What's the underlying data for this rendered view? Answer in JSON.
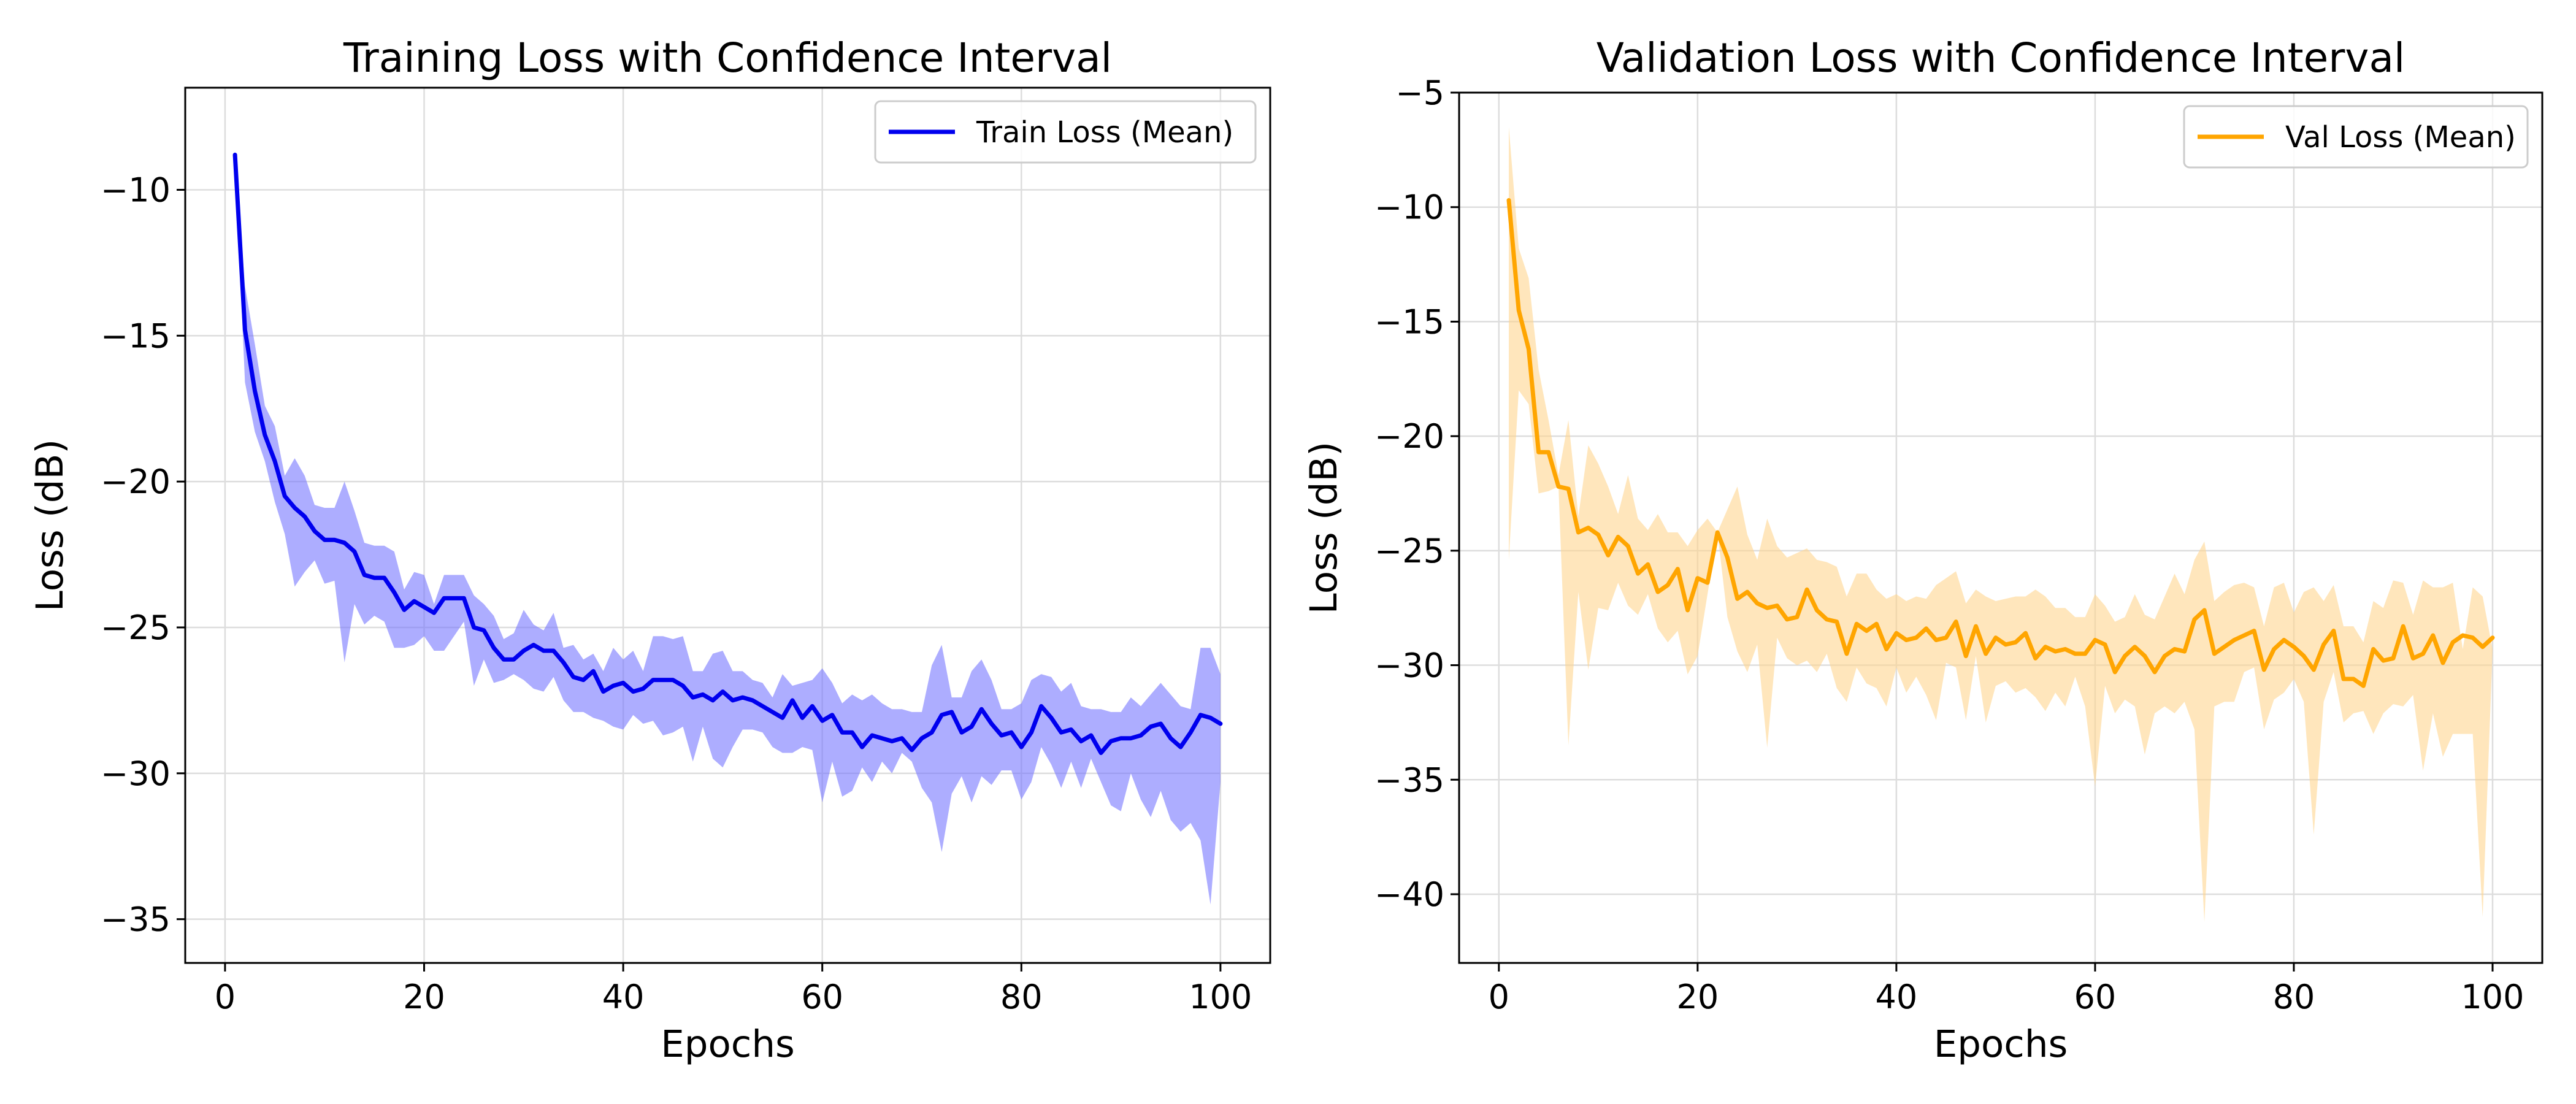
{
  "chart_data": [
    {
      "type": "line",
      "title": "Training Loss with Confidence Interval",
      "xlabel": "Epochs",
      "ylabel": "Loss (dB)",
      "xlim": [
        -4,
        105
      ],
      "ylim": [
        -36.5,
        -6.5
      ],
      "xticks": [
        0,
        20,
        40,
        60,
        80,
        100
      ],
      "xtick_labels": [
        "0",
        "20",
        "40",
        "60",
        "80",
        "100"
      ],
      "yticks": [
        -10,
        -15,
        -20,
        -25,
        -30,
        -35
      ],
      "ytick_labels": [
        "−10",
        "−15",
        "−20",
        "−25",
        "−30",
        "−35"
      ],
      "grid": true,
      "legend_position": "top-right",
      "color": "#0000ee",
      "fill_color": "#7777ff",
      "series": [
        {
          "name": "Train Loss (Mean)",
          "x": [
            1,
            2,
            3,
            4,
            5,
            6,
            7,
            8,
            9,
            10,
            11,
            12,
            13,
            14,
            15,
            16,
            17,
            18,
            19,
            20,
            21,
            22,
            23,
            24,
            25,
            26,
            27,
            28,
            29,
            30,
            31,
            32,
            33,
            34,
            35,
            36,
            37,
            38,
            39,
            40,
            41,
            42,
            43,
            44,
            45,
            46,
            47,
            48,
            49,
            50,
            51,
            52,
            53,
            54,
            55,
            56,
            57,
            58,
            59,
            60,
            61,
            62,
            63,
            64,
            65,
            66,
            67,
            68,
            69,
            70,
            71,
            72,
            73,
            74,
            75,
            76,
            77,
            78,
            79,
            80,
            81,
            82,
            83,
            84,
            85,
            86,
            87,
            88,
            89,
            90,
            91,
            92,
            93,
            94,
            95,
            96,
            97,
            98,
            99,
            100
          ],
          "mean": [
            -8.8,
            -14.8,
            -16.9,
            -18.4,
            -19.3,
            -20.5,
            -20.9,
            -21.2,
            -21.7,
            -22.0,
            -22.0,
            -22.1,
            -22.4,
            -23.2,
            -23.3,
            -23.3,
            -23.8,
            -24.4,
            -24.1,
            -24.3,
            -24.5,
            -24.0,
            -24.0,
            -24.0,
            -25.0,
            -25.1,
            -25.7,
            -26.1,
            -26.1,
            -25.8,
            -25.6,
            -25.8,
            -25.8,
            -26.2,
            -26.7,
            -26.8,
            -26.5,
            -27.2,
            -27.0,
            -26.9,
            -27.2,
            -27.1,
            -26.8,
            -26.8,
            -26.8,
            -27.0,
            -27.4,
            -27.3,
            -27.5,
            -27.2,
            -27.5,
            -27.4,
            -27.5,
            -27.7,
            -27.9,
            -28.1,
            -27.5,
            -28.1,
            -27.7,
            -28.2,
            -28.0,
            -28.6,
            -28.6,
            -29.1,
            -28.7,
            -28.8,
            -28.9,
            -28.8,
            -29.2,
            -28.8,
            -28.6,
            -28.0,
            -27.9,
            -28.6,
            -28.4,
            -27.8,
            -28.3,
            -28.7,
            -28.6,
            -29.1,
            -28.6,
            -27.7,
            -28.1,
            -28.6,
            -28.5,
            -28.9,
            -28.7,
            -29.3,
            -28.9,
            -28.8,
            -28.8,
            -28.7,
            -28.4,
            -28.3,
            -28.8,
            -29.1,
            -28.6,
            -28.0,
            -28.1,
            -28.3
          ],
          "lower": [
            -8.8,
            -16.6,
            -18.3,
            -19.3,
            -20.7,
            -21.8,
            -23.6,
            -23.1,
            -22.7,
            -23.5,
            -23.4,
            -26.2,
            -24.2,
            -24.9,
            -24.6,
            -24.8,
            -25.7,
            -25.7,
            -25.6,
            -25.3,
            -25.8,
            -25.8,
            -25.3,
            -24.8,
            -27.0,
            -26.1,
            -26.9,
            -26.8,
            -26.6,
            -26.8,
            -27.1,
            -27.2,
            -26.7,
            -27.5,
            -27.9,
            -27.9,
            -28.1,
            -28.2,
            -28.4,
            -28.5,
            -28.0,
            -28.3,
            -28.2,
            -28.7,
            -28.6,
            -28.4,
            -29.6,
            -28.4,
            -29.5,
            -29.8,
            -29.1,
            -28.5,
            -28.5,
            -28.6,
            -29.1,
            -29.3,
            -29.3,
            -29.1,
            -29.2,
            -31.0,
            -29.6,
            -30.8,
            -30.6,
            -29.8,
            -30.3,
            -29.6,
            -30.0,
            -29.3,
            -29.6,
            -30.5,
            -31.0,
            -32.7,
            -30.7,
            -30.1,
            -31.0,
            -30.1,
            -30.4,
            -29.9,
            -29.9,
            -30.9,
            -30.3,
            -29.1,
            -29.7,
            -30.5,
            -29.6,
            -30.5,
            -29.5,
            -30.3,
            -31.1,
            -31.3,
            -30.0,
            -30.9,
            -31.5,
            -30.6,
            -31.6,
            -32.0,
            -31.7,
            -32.3,
            -34.5,
            -30.3
          ],
          "upper": [
            -8.8,
            -13.3,
            -15.3,
            -17.4,
            -18.1,
            -19.8,
            -19.2,
            -19.8,
            -20.8,
            -20.9,
            -20.9,
            -20.0,
            -21.0,
            -22.1,
            -22.2,
            -22.2,
            -22.4,
            -23.7,
            -23.1,
            -23.2,
            -24.2,
            -23.2,
            -23.2,
            -23.2,
            -23.9,
            -24.2,
            -24.6,
            -25.4,
            -25.2,
            -24.4,
            -24.9,
            -25.1,
            -24.5,
            -25.7,
            -25.6,
            -26.1,
            -25.9,
            -26.5,
            -25.7,
            -26.1,
            -25.8,
            -26.5,
            -25.3,
            -25.3,
            -25.4,
            -25.3,
            -26.5,
            -26.5,
            -25.9,
            -25.8,
            -26.5,
            -26.5,
            -26.8,
            -26.9,
            -27.4,
            -26.6,
            -27.0,
            -26.9,
            -26.8,
            -26.4,
            -26.9,
            -27.6,
            -27.3,
            -27.5,
            -27.3,
            -27.6,
            -27.8,
            -27.8,
            -27.9,
            -27.9,
            -26.3,
            -25.6,
            -27.4,
            -27.4,
            -26.5,
            -26.1,
            -26.8,
            -27.8,
            -27.8,
            -27.6,
            -26.8,
            -26.6,
            -26.7,
            -27.2,
            -26.9,
            -27.7,
            -27.8,
            -27.8,
            -27.9,
            -27.9,
            -27.4,
            -27.7,
            -27.3,
            -26.9,
            -27.3,
            -27.7,
            -27.8,
            -25.7,
            -25.7,
            -26.6
          ]
        }
      ]
    },
    {
      "type": "line",
      "title": "Validation Loss with Confidence Interval",
      "xlabel": "Epochs",
      "ylabel": "Loss (dB)",
      "xlim": [
        -4,
        105
      ],
      "ylim": [
        -43,
        -5
      ],
      "xticks": [
        0,
        20,
        40,
        60,
        80,
        100
      ],
      "xtick_labels": [
        "0",
        "20",
        "40",
        "60",
        "80",
        "100"
      ],
      "yticks": [
        -5,
        -10,
        -15,
        -20,
        -25,
        -30,
        -35,
        -40
      ],
      "ytick_labels": [
        "−5",
        "−10",
        "−15",
        "−20",
        "−25",
        "−30",
        "−35",
        "−40"
      ],
      "grid": true,
      "legend_position": "top-right",
      "color": "#ffa500",
      "fill_color": "#ffd58f",
      "series": [
        {
          "name": "Val Loss (Mean)",
          "x": [
            1,
            2,
            3,
            4,
            5,
            6,
            7,
            8,
            9,
            10,
            11,
            12,
            13,
            14,
            15,
            16,
            17,
            18,
            19,
            20,
            21,
            22,
            23,
            24,
            25,
            26,
            27,
            28,
            29,
            30,
            31,
            32,
            33,
            34,
            35,
            36,
            37,
            38,
            39,
            40,
            41,
            42,
            43,
            44,
            45,
            46,
            47,
            48,
            49,
            50,
            51,
            52,
            53,
            54,
            55,
            56,
            57,
            58,
            59,
            60,
            61,
            62,
            63,
            64,
            65,
            66,
            67,
            68,
            69,
            70,
            71,
            72,
            73,
            74,
            75,
            76,
            77,
            78,
            79,
            80,
            81,
            82,
            83,
            84,
            85,
            86,
            87,
            88,
            89,
            90,
            91,
            92,
            93,
            94,
            95,
            96,
            97,
            98,
            99,
            100
          ],
          "mean": [
            -9.7,
            -14.5,
            -16.2,
            -20.7,
            -20.7,
            -22.2,
            -22.3,
            -24.2,
            -24.0,
            -24.3,
            -25.2,
            -24.4,
            -24.8,
            -26.0,
            -25.6,
            -26.8,
            -26.5,
            -25.8,
            -27.6,
            -26.2,
            -26.4,
            -24.2,
            -25.3,
            -27.1,
            -26.8,
            -27.3,
            -27.5,
            -27.4,
            -28.0,
            -27.9,
            -26.7,
            -27.6,
            -28.0,
            -28.1,
            -29.5,
            -28.2,
            -28.5,
            -28.2,
            -29.3,
            -28.6,
            -28.9,
            -28.8,
            -28.4,
            -28.9,
            -28.8,
            -28.1,
            -29.6,
            -28.3,
            -29.5,
            -28.8,
            -29.1,
            -29.0,
            -28.6,
            -29.7,
            -29.2,
            -29.4,
            -29.3,
            -29.5,
            -29.5,
            -28.9,
            -29.1,
            -30.3,
            -29.6,
            -29.2,
            -29.6,
            -30.3,
            -29.6,
            -29.3,
            -29.4,
            -28.0,
            -27.6,
            -29.5,
            -29.2,
            -28.9,
            -28.7,
            -28.5,
            -30.2,
            -29.3,
            -28.9,
            -29.2,
            -29.6,
            -30.2,
            -29.1,
            -28.5,
            -30.6,
            -30.6,
            -30.9,
            -29.3,
            -29.8,
            -29.7,
            -28.3,
            -29.7,
            -29.5,
            -28.7,
            -29.9,
            -29.0,
            -28.7,
            -28.8,
            -29.2,
            -28.8
          ]
        }
      ],
      "lower": [
        -25.4,
        -18.0,
        -18.6,
        -22.5,
        -22.4,
        -22.2,
        -33.5,
        -26.8,
        -30.2,
        -27.5,
        -27.6,
        -26.4,
        -27.4,
        -27.8,
        -26.9,
        -28.4,
        -29.0,
        -28.5,
        -30.4,
        -29.6,
        -26.9,
        -24.2,
        -27.9,
        -29.4,
        -30.3,
        -29.1,
        -33.6,
        -28.8,
        -29.7,
        -30.0,
        -29.8,
        -30.3,
        -29.5,
        -31.0,
        -31.6,
        -30.1,
        -30.8,
        -31.0,
        -31.8,
        -30.1,
        -31.2,
        -30.5,
        -31.3,
        -32.4,
        -29.9,
        -30.1,
        -32.4,
        -29.6,
        -32.5,
        -30.9,
        -30.7,
        -31.2,
        -31.0,
        -31.4,
        -32.0,
        -31.2,
        -31.8,
        -30.5,
        -31.8,
        -35.3,
        -30.9,
        -32.1,
        -31.5,
        -31.8,
        -33.9,
        -32.1,
        -31.8,
        -32.1,
        -31.6,
        -32.8,
        -41.2,
        -31.8,
        -31.6,
        -31.6,
        -30.3,
        -30.1,
        -32.8,
        -31.5,
        -31.2,
        -30.6,
        -31.6,
        -37.4,
        -31.6,
        -30.3,
        -32.5,
        -32.1,
        -32.0,
        -33.0,
        -32.1,
        -31.7,
        -31.8,
        -31.3,
        -34.6,
        -32.1,
        -34.0,
        -33.0,
        -33.0,
        -33.0,
        -41.0,
        -29.3
      ],
      "upper": [
        -6.5,
        -11.8,
        -13.1,
        -17.1,
        -19.3,
        -21.7,
        -19.3,
        -23.5,
        -20.4,
        -21.2,
        -22.2,
        -23.4,
        -21.7,
        -23.6,
        -24.1,
        -23.4,
        -24.2,
        -24.2,
        -24.8,
        -24.1,
        -23.6,
        -24.2,
        -23.2,
        -22.2,
        -24.3,
        -25.4,
        -23.6,
        -24.8,
        -25.3,
        -25.1,
        -24.9,
        -25.4,
        -25.5,
        -25.7,
        -27.0,
        -26.0,
        -26.0,
        -26.7,
        -27.1,
        -26.9,
        -27.2,
        -27.0,
        -27.1,
        -26.5,
        -26.2,
        -25.9,
        -27.3,
        -26.7,
        -27.0,
        -27.2,
        -27.1,
        -27.0,
        -27.0,
        -26.7,
        -27.0,
        -27.5,
        -27.5,
        -27.9,
        -27.9,
        -26.9,
        -27.4,
        -28.1,
        -27.9,
        -26.9,
        -27.8,
        -28.0,
        -27.0,
        -26.0,
        -26.9,
        -25.4,
        -24.6,
        -27.2,
        -26.8,
        -26.5,
        -26.4,
        -26.6,
        -28.3,
        -26.6,
        -26.4,
        -27.7,
        -26.8,
        -26.6,
        -27.2,
        -26.5,
        -28.3,
        -28.3,
        -29.0,
        -27.2,
        -27.5,
        -26.3,
        -26.4,
        -27.8,
        -26.3,
        -26.6,
        -26.6,
        -26.4,
        -29.3,
        -26.6,
        -27.0,
        -29.3
      ]
    }
  ]
}
